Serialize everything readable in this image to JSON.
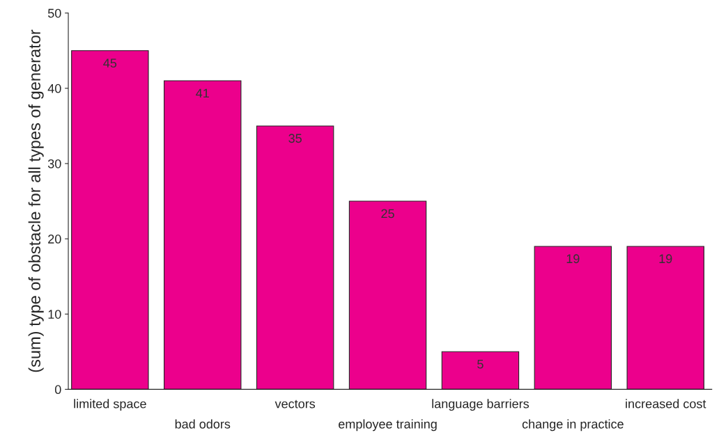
{
  "chart_data": {
    "type": "bar",
    "ylabel": "(sum) type of obstacle for all types of generator",
    "categories": [
      "limited space",
      "bad odors",
      "vectors",
      "employee training",
      "language barriers",
      "change in practice",
      "increased cost"
    ],
    "values": [
      45,
      41,
      35,
      25,
      5,
      19,
      19
    ],
    "color": "#ec008c",
    "ylim": [
      0,
      50
    ],
    "yticks": [
      0,
      10,
      20,
      30,
      40,
      50
    ],
    "grid": false,
    "data_labels": true
  }
}
